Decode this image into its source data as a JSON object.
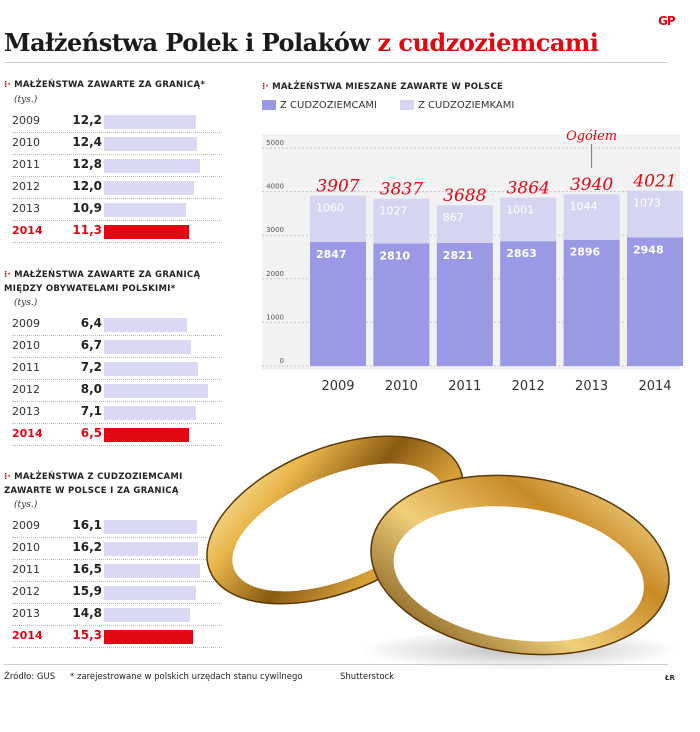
{
  "title": {
    "main": "Małżeństwa Polek i Polaków",
    "accent": "z cudzoziemcami"
  },
  "logo_text": "GP",
  "colors": {
    "accent": "#e30613",
    "bar_light": "#d9d9f3",
    "bar_dark": "#9999e6",
    "bar_top": "#d5d5f2"
  },
  "left_sections": [
    {
      "title_lines": [
        "Małżeństwa zawarte za granicą*"
      ],
      "unit": "(tys.)",
      "rows": [
        {
          "year": "2009",
          "value": "12,2",
          "num": 12.2
        },
        {
          "year": "2010",
          "value": "12,4",
          "num": 12.4
        },
        {
          "year": "2011",
          "value": "12,8",
          "num": 12.8
        },
        {
          "year": "2012",
          "value": "12,0",
          "num": 12.0
        },
        {
          "year": "2013",
          "value": "10,9",
          "num": 10.9
        },
        {
          "year": "2014",
          "value": "11,3",
          "num": 11.3
        }
      ]
    },
    {
      "title_lines": [
        "Małżeństwa zawarte za granicą",
        "między obywatelami polskimi*"
      ],
      "unit": "(tys.)",
      "rows": [
        {
          "year": "2009",
          "value": "6,4",
          "num": 6.4
        },
        {
          "year": "2010",
          "value": "6,7",
          "num": 6.7
        },
        {
          "year": "2011",
          "value": "7,2",
          "num": 7.2
        },
        {
          "year": "2012",
          "value": "8,0",
          "num": 8.0
        },
        {
          "year": "2013",
          "value": "7,1",
          "num": 7.1
        },
        {
          "year": "2014",
          "value": "6,5",
          "num": 6.5
        }
      ]
    },
    {
      "title_lines": [
        "Małżeństwa z cudzoziemcami",
        "zawarte w Polsce i za granicą"
      ],
      "unit": "(tys.)",
      "rows": [
        {
          "year": "2009",
          "value": "16,1",
          "num": 16.1
        },
        {
          "year": "2010",
          "value": "16,2",
          "num": 16.2
        },
        {
          "year": "2011",
          "value": "16,5",
          "num": 16.5
        },
        {
          "year": "2012",
          "value": "15,9",
          "num": 15.9
        },
        {
          "year": "2013",
          "value": "14,8",
          "num": 14.8
        },
        {
          "year": "2014",
          "value": "15,3",
          "num": 15.3
        }
      ]
    }
  ],
  "right": {
    "title": "Małżeństwa mieszane zawarte w Polsce",
    "legend": [
      "z cudzoziemcami",
      "z cudzoziemkami"
    ],
    "total_label": "Ogółem"
  },
  "footer": {
    "source": "Źródło: GUS",
    "note": "* zarejestrowane w polskich urzędach stanu cywilnego",
    "photo": "Shutterstock",
    "sig": "ŁR"
  },
  "chart_data": {
    "type": "bar",
    "stacked": true,
    "categories": [
      "2009",
      "2010",
      "2011",
      "2012",
      "2013",
      "2014"
    ],
    "series": [
      {
        "name": "z cudzoziemcami",
        "values": [
          2847,
          2810,
          2821,
          2863,
          2896,
          2948
        ]
      },
      {
        "name": "z cudzoziemkami",
        "values": [
          1060,
          1027,
          867,
          1001,
          1044,
          1073
        ]
      }
    ],
    "totals": [
      3907,
      3837,
      3688,
      3864,
      3940,
      4021
    ],
    "yticks": [
      0,
      1000,
      2000,
      3000,
      4000,
      5000
    ],
    "ylim": [
      0,
      5000
    ],
    "grid": true,
    "highlight_year": "2014"
  }
}
